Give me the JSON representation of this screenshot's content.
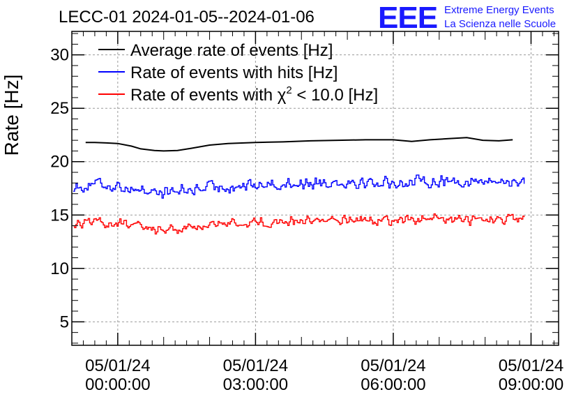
{
  "chart_data": {
    "type": "line",
    "title": "LECC-01 2024-01-05--2024-01-06",
    "ylabel": "Rate [Hz]",
    "xlabel": "",
    "xlim_hours": [
      -1.0,
      9.6
    ],
    "ylim": [
      2.8,
      32.2
    ],
    "yticks": [
      5,
      10,
      15,
      20,
      25,
      30
    ],
    "xticks": [
      {
        "hours": 0,
        "label_line1": "05/01/24",
        "label_line2": "00:00:00"
      },
      {
        "hours": 3,
        "label_line1": "05/01/24",
        "label_line2": "03:00:00"
      },
      {
        "hours": 6,
        "label_line1": "05/01/24",
        "label_line2": "06:00:00"
      },
      {
        "hours": 9,
        "label_line1": "05/01/24",
        "label_line2": "09:00:00"
      }
    ],
    "legend": {
      "placement": "top-left",
      "entries": [
        {
          "series_index": 0,
          "text": "Average rate of events [Hz]"
        },
        {
          "series_index": 1,
          "text": "Rate of events with hits [Hz]"
        },
        {
          "series_index": 2,
          "text_prefix": "Rate of events with ",
          "chi": "χ",
          "sup": "2",
          "text_suffix": " < 10.0 [Hz]"
        }
      ]
    },
    "series": [
      {
        "name": "Average rate of events [Hz]",
        "color": "#000000",
        "style": "smooth",
        "x_hours": [
          -0.7,
          -0.5,
          -0.25,
          0.0,
          0.3,
          0.5,
          0.8,
          1.0,
          1.3,
          1.6,
          2.0,
          2.4,
          3.0,
          3.6,
          4.2,
          4.8,
          5.4,
          6.0,
          6.4,
          6.8,
          7.2,
          7.6,
          7.95,
          8.3,
          8.6
        ],
        "values": [
          21.8,
          21.8,
          21.75,
          21.7,
          21.45,
          21.2,
          21.05,
          21.0,
          21.05,
          21.25,
          21.55,
          21.7,
          21.8,
          21.85,
          21.95,
          22.0,
          22.05,
          22.05,
          21.9,
          22.05,
          22.15,
          22.25,
          22.0,
          21.95,
          22.05
        ]
      },
      {
        "name": "Rate of events with hits [Hz]",
        "color": "#0000ff",
        "style": "noisy",
        "x_start_hours": -0.97,
        "x_end_hours": 8.85,
        "noise_amplitude": 0.7,
        "trend_hours": [
          -0.97,
          -0.5,
          0.0,
          0.6,
          1.0,
          1.5,
          2.0,
          3.0,
          4.0,
          5.0,
          6.0,
          7.0,
          8.0,
          8.85
        ],
        "trend_values": [
          17.6,
          17.9,
          17.7,
          17.3,
          17.1,
          17.3,
          17.6,
          17.8,
          18.0,
          18.1,
          18.0,
          18.2,
          18.1,
          18.2
        ]
      },
      {
        "name": "Rate of events with χ2 < 10.0 [Hz]",
        "color": "#ff0000",
        "style": "noisy",
        "x_start_hours": -0.97,
        "x_end_hours": 8.85,
        "noise_amplitude": 0.55,
        "trend_hours": [
          -0.97,
          -0.5,
          0.0,
          0.6,
          1.0,
          1.5,
          2.0,
          3.0,
          4.0,
          5.0,
          6.0,
          7.0,
          8.0,
          8.85
        ],
        "trend_values": [
          14.1,
          14.3,
          14.2,
          13.8,
          13.6,
          13.8,
          14.1,
          14.3,
          14.5,
          14.6,
          14.5,
          14.6,
          14.5,
          14.6
        ]
      }
    ]
  },
  "logo": {
    "mark": "EEE",
    "line1": "Extreme Energy Events",
    "line2": "La Scienza nelle Scuole",
    "color": "#1a1aff"
  }
}
